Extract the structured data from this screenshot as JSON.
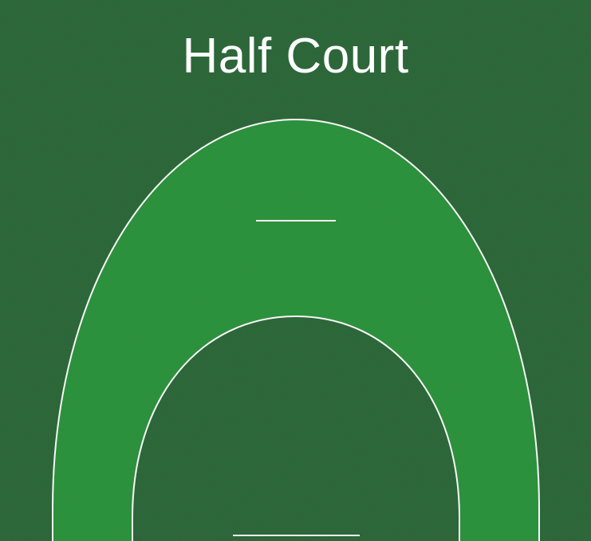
{
  "title": "Half Court",
  "colors": {
    "background": "#2e6a3b",
    "outer_area": "#2d953e",
    "inner_area": "#2e6a3b",
    "line": "#ffffff"
  }
}
